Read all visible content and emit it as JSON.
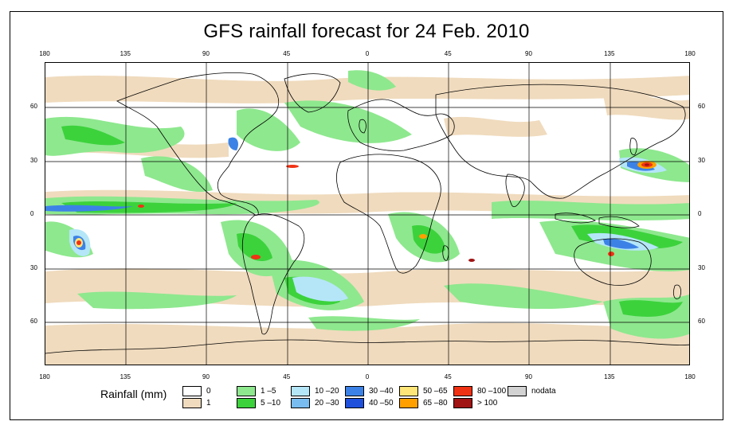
{
  "title": "GFS rainfall forecast for 24 Feb. 2010",
  "axes": {
    "top_lon_labels": [
      "180",
      "135",
      "90",
      "45",
      "0",
      "45",
      "90",
      "135",
      "180"
    ],
    "bottom_lon_labels": [
      "180",
      "135",
      "90",
      "45",
      "0",
      "45",
      "90",
      "135",
      "180"
    ],
    "left_lat_labels": [
      "60",
      "30",
      "0",
      "30",
      "60"
    ],
    "right_lat_labels": [
      "60",
      "30",
      "0",
      "30",
      "60"
    ]
  },
  "legend": {
    "title": "Rainfall (mm)",
    "items": [
      {
        "label": "0",
        "color": "#ffffff"
      },
      {
        "label": "1",
        "color": "#f0dbbe"
      },
      {
        "label": "1 –5",
        "color": "#8ee88e"
      },
      {
        "label": "5 –10",
        "color": "#3cd23c"
      },
      {
        "label": "10 –20",
        "color": "#b4e6f8"
      },
      {
        "label": "20 –30",
        "color": "#78bcf0"
      },
      {
        "label": "30 –40",
        "color": "#3c82e6"
      },
      {
        "label": "40 –50",
        "color": "#1e50dc"
      },
      {
        "label": "50 –65",
        "color": "#ffe678"
      },
      {
        "label": "65 –80",
        "color": "#ffa000"
      },
      {
        "label": "80 –100",
        "color": "#f03214"
      },
      {
        "label": "> 100",
        "color": "#a01414"
      },
      {
        "label": "nodata",
        "color": "#d2d2d2"
      }
    ]
  }
}
